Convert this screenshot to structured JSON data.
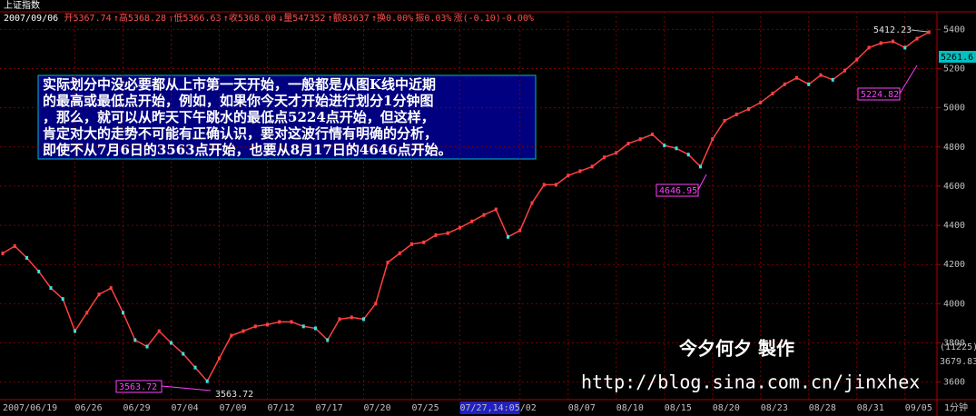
{
  "chart_data": {
    "type": "line",
    "title": "上证指数",
    "info": [
      "2007/09/06",
      "开5367.74",
      "↑高5368.28",
      "↑低5366.63",
      "↑收5368.00",
      "↓量547352",
      "↑额83637",
      "↑换0.00%",
      "振0.03%",
      "涨(-0.10)-0.00%"
    ],
    "categories": [
      "2007/06/19",
      null,
      null,
      null,
      null,
      null,
      "06/26",
      null,
      null,
      null,
      "06/29",
      null,
      null,
      null,
      "07/04",
      null,
      null,
      null,
      "07/09",
      null,
      null,
      null,
      "07/12",
      null,
      null,
      null,
      "07/17",
      null,
      null,
      null,
      "07/20",
      null,
      null,
      null,
      "07/25",
      null,
      null,
      null,
      "07/27,14:05",
      null,
      null,
      null,
      null,
      "/02",
      null,
      null,
      null,
      "08/07",
      null,
      null,
      null,
      "08/10",
      null,
      null,
      null,
      "08/15",
      null,
      null,
      null,
      "08/20",
      null,
      null,
      null,
      "08/23",
      null,
      null,
      null,
      "08/28",
      null,
      null,
      null,
      "08/31",
      null,
      null,
      null,
      "09/05",
      null,
      null
    ],
    "series": [
      {
        "name": "上证指数",
        "color": "#ff4040",
        "values": [
          4257,
          4294,
          4234,
          4164,
          4080,
          4024,
          3860,
          3954,
          4047,
          4080,
          3954,
          3814,
          3781,
          3860,
          3800,
          3744,
          3674,
          3604,
          3721,
          3837,
          3860,
          3884,
          3893,
          3907,
          3907,
          3884,
          3874,
          3814,
          3921,
          3930,
          3921,
          4000,
          4210,
          4257,
          4304,
          4313,
          4350,
          4360,
          4388,
          4420,
          4453,
          4481,
          4341,
          4374,
          4514,
          4607,
          4607,
          4654,
          4677,
          4700,
          4747,
          4770,
          4817,
          4840,
          4864,
          4808,
          4793,
          4761,
          4700,
          4840,
          4934,
          4966,
          4994,
          5027,
          5073,
          5120,
          5153,
          5120,
          5167,
          5143,
          5190,
          5246,
          5307,
          5330,
          5339,
          5307,
          5353,
          5386
        ]
      }
    ],
    "ylim": [
      3510,
      5490
    ],
    "yticks": [
      3600,
      3800,
      4000,
      4200,
      4400,
      4600,
      4800,
      5000,
      5200,
      5400
    ],
    "grid": true,
    "period_label": "1分钟",
    "side_labels": [
      "5261.6",
      "(11225)",
      "3679.83"
    ],
    "callouts": [
      "5412.23",
      "5224.82",
      "4646.95",
      "3563.72",
      "3563.72"
    ],
    "note": [
      "实际划分中没必要都从上市第一天开始，一般都是从图K线中近期",
      "的最高或最低点开始，例如，如果你今天才开始进行划分1分钟图",
      "，那么，就可以从昨天下午跳水的最低点5224点开始，但这样，",
      "肯定对大的走势不可能有正确认识，要对这波行情有明确的分析，",
      "即使不从7月6日的3563点开始，也要从8月17日的4646点开始。"
    ],
    "watermark": [
      "今夕何夕  製作",
      "http://blog.sina.com.cn/jinxhex"
    ]
  }
}
